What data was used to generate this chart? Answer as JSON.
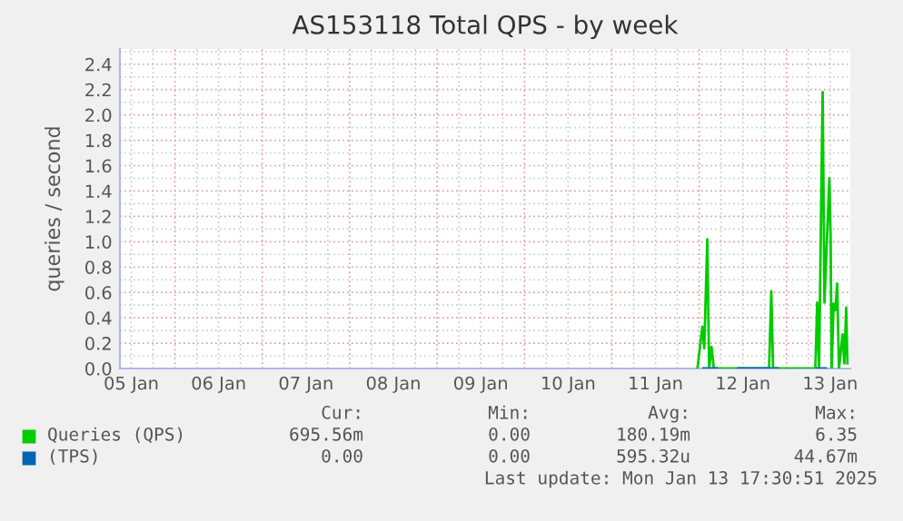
{
  "chart_data": {
    "type": "line",
    "title": "AS153118 Total QPS - by week",
    "ylabel": "queries / second",
    "xlim": [
      "2025-01-05T08:53",
      "2025-01-13T17:31"
    ],
    "ylim": [
      0,
      2.52
    ],
    "xticks": [
      {
        "value": "2025-01-05T12:00",
        "label": "05 Jan"
      },
      {
        "value": "2025-01-06T12:00",
        "label": "06 Jan"
      },
      {
        "value": "2025-01-07T12:00",
        "label": "07 Jan"
      },
      {
        "value": "2025-01-08T12:00",
        "label": "08 Jan"
      },
      {
        "value": "2025-01-09T12:00",
        "label": "09 Jan"
      },
      {
        "value": "2025-01-10T12:00",
        "label": "10 Jan"
      },
      {
        "value": "2025-01-11T12:00",
        "label": "11 Jan"
      },
      {
        "value": "2025-01-12T12:00",
        "label": "12 Jan"
      },
      {
        "value": "2025-01-13T12:00",
        "label": "13 Jan"
      }
    ],
    "yticks": [
      {
        "value": 0,
        "label": "0.0"
      },
      {
        "value": 0.2,
        "label": "0.2"
      },
      {
        "value": 0.4,
        "label": "0.4"
      },
      {
        "value": 0.6,
        "label": "0.6"
      },
      {
        "value": 0.8,
        "label": "0.8"
      },
      {
        "value": 1.0,
        "label": "1.0"
      },
      {
        "value": 1.2,
        "label": "1.2"
      },
      {
        "value": 1.4,
        "label": "1.4"
      },
      {
        "value": 1.6,
        "label": "1.6"
      },
      {
        "value": 1.8,
        "label": "1.8"
      },
      {
        "value": 2.0,
        "label": "2.0"
      },
      {
        "value": 2.2,
        "label": "2.2"
      },
      {
        "value": 2.4,
        "label": "2.4"
      }
    ],
    "grid": true,
    "legend": "bottom",
    "marker": "none",
    "line_style": "solid",
    "series": [
      {
        "name": "Queries (QPS)",
        "color": "#00cc00",
        "x": [
          "2025-01-11T23:31",
          "2025-01-12T00:53",
          "2025-01-12T01:24",
          "2025-01-12T02:14",
          "2025-01-12T02:44",
          "2025-01-12T03:23",
          "2025-01-12T04:02",
          "2025-01-12T19:12",
          "2025-01-12T19:49",
          "2025-01-12T20:18",
          "2025-01-13T07:55",
          "2025-01-13T08:25",
          "2025-01-13T08:56",
          "2025-01-13T09:55",
          "2025-01-13T10:25",
          "2025-01-13T11:46",
          "2025-01-13T12:06",
          "2025-01-13T12:24",
          "2025-01-13T12:55",
          "2025-01-13T13:25",
          "2025-01-13T13:54",
          "2025-01-13T14:24",
          "2025-01-13T14:54",
          "2025-01-13T15:24",
          "2025-01-13T15:53",
          "2025-01-13T16:23",
          "2025-01-13T16:44"
        ],
        "values": [
          0,
          0.33,
          0.16,
          1.02,
          0,
          0.17,
          0,
          0,
          0.61,
          0,
          0,
          0.52,
          0,
          2.18,
          0.52,
          1.5,
          1.04,
          0,
          0.51,
          0.46,
          0.67,
          0,
          0.13,
          0.27,
          0.04,
          0.48,
          0.04
        ]
      },
      {
        "name": "(TPS)",
        "color": "#0066b3",
        "x": [
          "2025-01-12T01:12",
          "2025-01-12T04:48",
          "2025-01-12T05:02",
          "2025-01-12T10:48",
          "2025-01-12T21:36",
          "2025-01-12T21:50",
          "2025-01-13T08:24",
          "2025-01-13T10:48"
        ],
        "values": [
          0,
          0,
          null,
          0,
          0,
          null,
          0,
          0
        ]
      }
    ],
    "annotations": [
      "Cur:",
      "Min:",
      "Avg:",
      "Max:",
      "695.56m",
      "0.00",
      "180.19m",
      "6.35",
      "0.00",
      "0.00",
      "595.32u",
      "44.67m",
      "Last update: Mon Jan 13 17:30:51 2025"
    ]
  }
}
